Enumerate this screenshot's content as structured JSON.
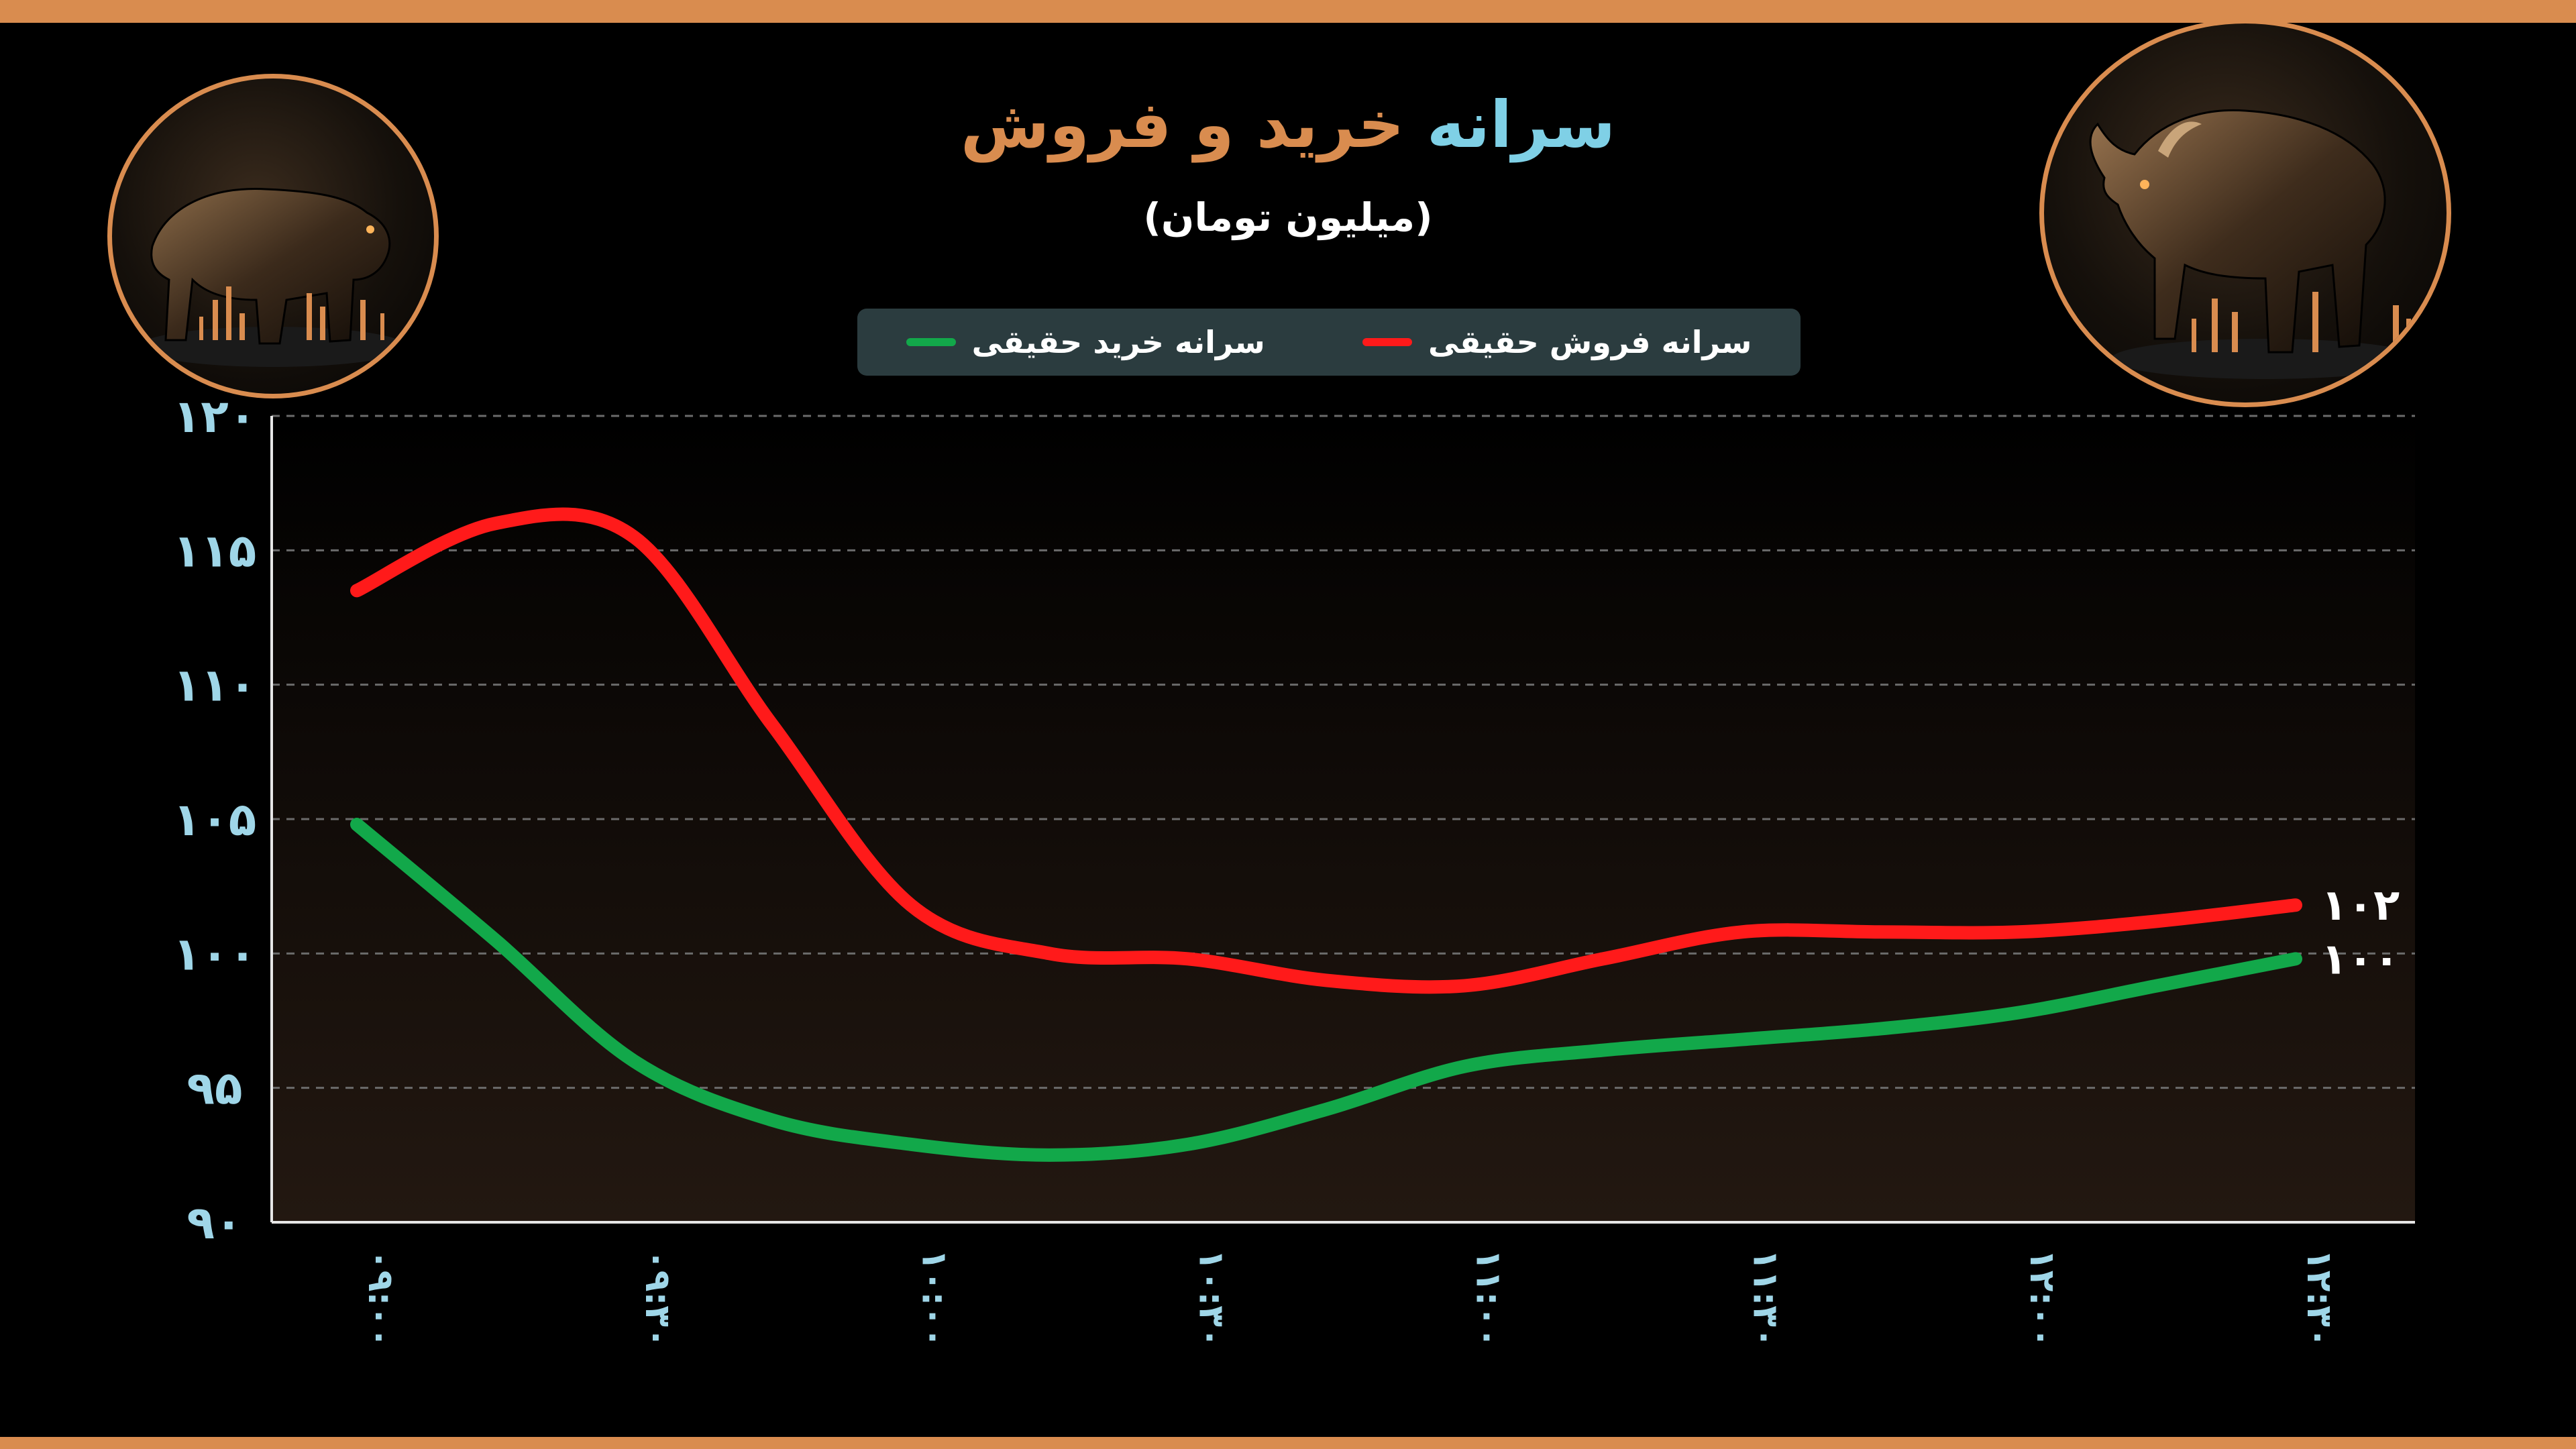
{
  "header": {
    "title_part1": "سرانه",
    "title_part2": "خرید و فروش",
    "subtitle": "(میلیون تومان)"
  },
  "icons": {
    "left": "bear-icon",
    "right": "bull-icon"
  },
  "colors": {
    "accent": "#d98c4f",
    "title_blue": "#7fd0e6",
    "sell_line": "#ff1a1a",
    "buy_line": "#12a84a",
    "legend_bg": "#2b3c3f",
    "axis_text": "#9fd6e8"
  },
  "chart_data": {
    "type": "line",
    "categories": [
      "۰۹:۰۰",
      "۰۹:۳۰",
      "۱۰:۰۰",
      "۱۰:۳۰",
      "۱۱:۰۰",
      "۱۱:۳۰",
      "۱۲:۰۰",
      "۱۲:۳۰"
    ],
    "y_tick_labels": [
      "۹۰",
      "۹۵",
      "۱۰۰",
      "۱۰۵",
      "۱۱۰",
      "۱۱۵",
      "۱۲۰"
    ],
    "y_ticks": [
      90,
      95,
      100,
      105,
      110,
      115,
      120
    ],
    "ylim": [
      90,
      120
    ],
    "grid": true,
    "legend_position": "top",
    "series": [
      {
        "name": "سرانه فروش حقیقی",
        "key": "sell",
        "color": "#ff1a1a",
        "x": [
          0,
          0.5,
          1,
          1.5,
          2,
          2.5,
          3,
          3.5,
          4,
          4.5,
          5,
          5.5,
          6,
          6.5,
          7
        ],
        "values": [
          113.5,
          116,
          115.5,
          108.5,
          101.8,
          100,
          99.8,
          99,
          98.8,
          99.8,
          100.8,
          100.8,
          100.8,
          101.2,
          101.8
        ],
        "end_label": "۱۰۲"
      },
      {
        "name": "سرانه خرید حقیقی",
        "key": "buy",
        "color": "#12a84a",
        "x": [
          0,
          0.5,
          1,
          1.5,
          2,
          2.5,
          3,
          3.5,
          4,
          4.5,
          5,
          5.5,
          6,
          6.5,
          7
        ],
        "values": [
          104.8,
          100.5,
          96,
          93.8,
          92.9,
          92.5,
          92.9,
          94.2,
          95.8,
          96.4,
          96.8,
          97.2,
          97.8,
          98.8,
          99.8
        ],
        "end_label": "۱۰۰"
      }
    ]
  }
}
